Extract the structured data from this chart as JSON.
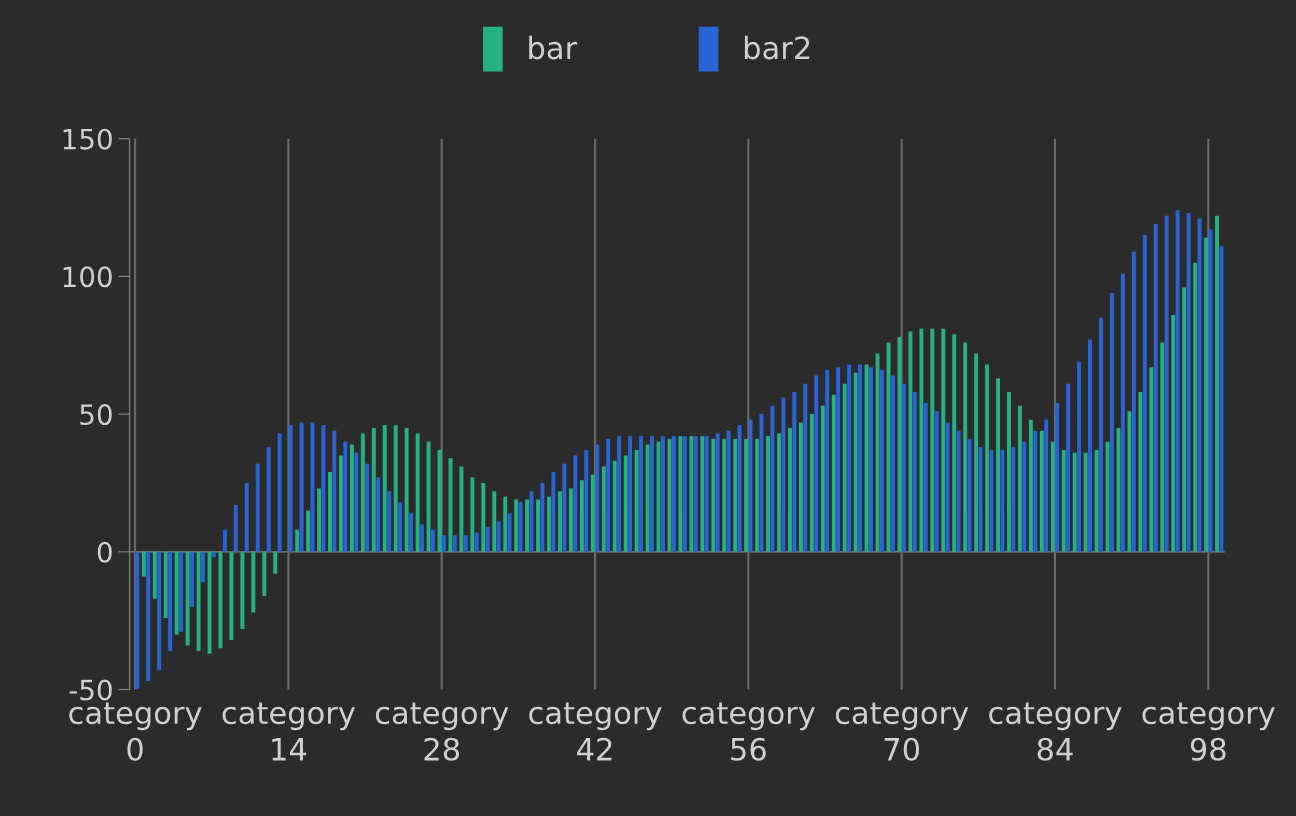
{
  "chart_data": {
    "type": "bar",
    "categories": [
      "category\n0",
      null,
      null,
      null,
      null,
      null,
      null,
      null,
      null,
      null,
      null,
      null,
      null,
      null,
      "category\n14",
      null,
      null,
      null,
      null,
      null,
      null,
      null,
      null,
      null,
      null,
      null,
      null,
      null,
      "category\n28",
      null,
      null,
      null,
      null,
      null,
      null,
      null,
      null,
      null,
      null,
      null,
      null,
      null,
      "category\n42",
      null,
      null,
      null,
      null,
      null,
      null,
      null,
      null,
      null,
      null,
      null,
      null,
      null,
      "category\n56",
      null,
      null,
      null,
      null,
      null,
      null,
      null,
      null,
      null,
      null,
      null,
      null,
      null,
      "category\n70",
      null,
      null,
      null,
      null,
      null,
      null,
      null,
      null,
      null,
      null,
      null,
      null,
      null,
      "category\n84",
      null,
      null,
      null,
      null,
      null,
      null,
      null,
      null,
      null,
      null,
      null,
      null,
      null,
      "category\n98",
      null
    ],
    "series": [
      {
        "name": "bar",
        "color": "#27b083",
        "values": [
          0,
          -9,
          -17,
          -24,
          -30,
          -34,
          -36,
          -37,
          -35,
          -32,
          -28,
          -22,
          -16,
          -8,
          0,
          8,
          15,
          23,
          29,
          35,
          39,
          43,
          45,
          46,
          46,
          45,
          43,
          40,
          37,
          34,
          31,
          27,
          25,
          22,
          20,
          19,
          19,
          19,
          20,
          22,
          23,
          26,
          28,
          31,
          33,
          35,
          37,
          39,
          40,
          41,
          42,
          42,
          42,
          41,
          41,
          41,
          41,
          41,
          42,
          43,
          45,
          47,
          50,
          53,
          57,
          61,
          65,
          68,
          72,
          76,
          78,
          80,
          81,
          81,
          81,
          79,
          76,
          72,
          68,
          63,
          58,
          53,
          48,
          44,
          40,
          37,
          36,
          36,
          37,
          40,
          45,
          51,
          58,
          67,
          76,
          86,
          96,
          105,
          114,
          122
        ]
      },
      {
        "name": "bar2",
        "color": "#2a64d4",
        "values": [
          -50,
          -47,
          -43,
          -36,
          -29,
          -20,
          -11,
          -2,
          8,
          17,
          25,
          32,
          38,
          43,
          46,
          47,
          47,
          46,
          44,
          40,
          36,
          32,
          27,
          22,
          18,
          14,
          10,
          8,
          6,
          6,
          6,
          7,
          9,
          11,
          14,
          18,
          22,
          25,
          29,
          32,
          35,
          37,
          39,
          41,
          42,
          42,
          42,
          42,
          42,
          42,
          42,
          42,
          42,
          43,
          44,
          46,
          48,
          50,
          53,
          56,
          58,
          61,
          64,
          66,
          67,
          68,
          68,
          67,
          66,
          64,
          61,
          58,
          54,
          51,
          47,
          44,
          41,
          38,
          37,
          37,
          38,
          40,
          44,
          48,
          54,
          61,
          69,
          77,
          85,
          94,
          101,
          109,
          115,
          119,
          122,
          124,
          123,
          121,
          117,
          111
        ]
      }
    ],
    "ylim": [
      -50,
      150
    ],
    "yticks": [
      -50,
      0,
      50,
      100,
      150
    ],
    "grid": "x",
    "legend": "top"
  }
}
